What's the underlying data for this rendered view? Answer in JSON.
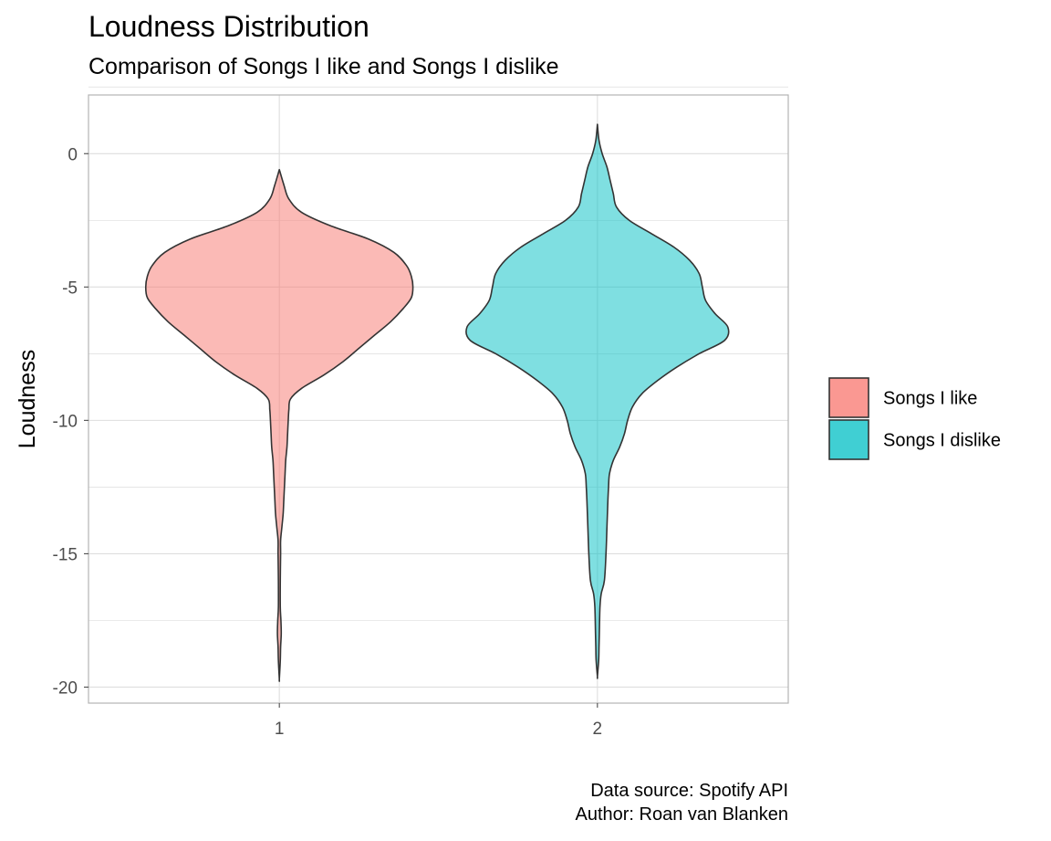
{
  "chart_data": {
    "type": "violin",
    "title": "Loudness Distribution",
    "subtitle": "Comparison of Songs I like and Songs I dislike",
    "xlabel": "",
    "ylabel": "Loudness",
    "caption": [
      "Data source: Spotify API",
      "Author: Roan van Blanken"
    ],
    "categories": [
      "1",
      "2"
    ],
    "x_ticks": [
      "1",
      "2"
    ],
    "y_ticks": [
      0,
      -5,
      -10,
      -15,
      -20
    ],
    "ylim": [
      -20.6,
      2.2
    ],
    "xlim": [
      0.4,
      2.6
    ],
    "grid": true,
    "legend_position": "right",
    "legend_labels": [
      "Songs I like",
      "Songs I dislike"
    ],
    "colors": {
      "like_fill": "#f8766d",
      "dislike_fill": "#00bfc4",
      "outline": "#333333",
      "grid": "#dedede",
      "panel_border": "#b3b3b3"
    },
    "series": [
      {
        "name": "Songs I like",
        "x": 1,
        "profile_loudness": [
          -0.6,
          -1.2,
          -1.7,
          -2.2,
          -2.7,
          -3.2,
          -3.7,
          -4.2,
          -4.6,
          -5.0,
          -5.4,
          -5.8,
          -6.3,
          -6.8,
          -7.3,
          -7.8,
          -8.3,
          -8.8,
          -9.2,
          -9.6,
          -10.0,
          -10.5,
          -11.0,
          -11.5,
          -12.0,
          -12.5,
          -13.0,
          -13.5,
          -14.0,
          -14.5,
          -15.0,
          -16.0,
          -17.0,
          -17.5,
          -18.0,
          -18.5,
          -19.0,
          -19.7
        ],
        "profile_halfwidth": [
          0.0,
          0.015,
          0.03,
          0.07,
          0.16,
          0.28,
          0.36,
          0.4,
          0.415,
          0.42,
          0.415,
          0.39,
          0.35,
          0.3,
          0.25,
          0.2,
          0.14,
          0.07,
          0.035,
          0.03,
          0.028,
          0.026,
          0.024,
          0.02,
          0.018,
          0.016,
          0.014,
          0.012,
          0.008,
          0.004,
          0.004,
          0.003,
          0.003,
          0.005,
          0.006,
          0.004,
          0.003,
          0.0
        ]
      },
      {
        "name": "Songs I dislike",
        "x": 2,
        "profile_loudness": [
          1.1,
          0.5,
          0.0,
          -0.5,
          -1.0,
          -1.5,
          -2.0,
          -2.5,
          -3.0,
          -3.5,
          -4.0,
          -4.5,
          -5.0,
          -5.5,
          -6.0,
          -6.5,
          -7.0,
          -7.5,
          -8.0,
          -8.5,
          -9.0,
          -9.5,
          -10.0,
          -10.5,
          -11.0,
          -11.5,
          -12.0,
          -12.5,
          -13.0,
          -14.0,
          -15.0,
          -16.0,
          -16.5,
          -17.0,
          -18.0,
          -18.5,
          -19.0,
          -19.6
        ],
        "profile_halfwidth": [
          0.0,
          0.005,
          0.015,
          0.03,
          0.04,
          0.05,
          0.06,
          0.1,
          0.17,
          0.24,
          0.29,
          0.32,
          0.33,
          0.34,
          0.37,
          0.41,
          0.4,
          0.32,
          0.25,
          0.19,
          0.14,
          0.11,
          0.095,
          0.085,
          0.07,
          0.05,
          0.038,
          0.035,
          0.033,
          0.03,
          0.027,
          0.022,
          0.012,
          0.008,
          0.006,
          0.005,
          0.004,
          0.0
        ]
      }
    ]
  }
}
